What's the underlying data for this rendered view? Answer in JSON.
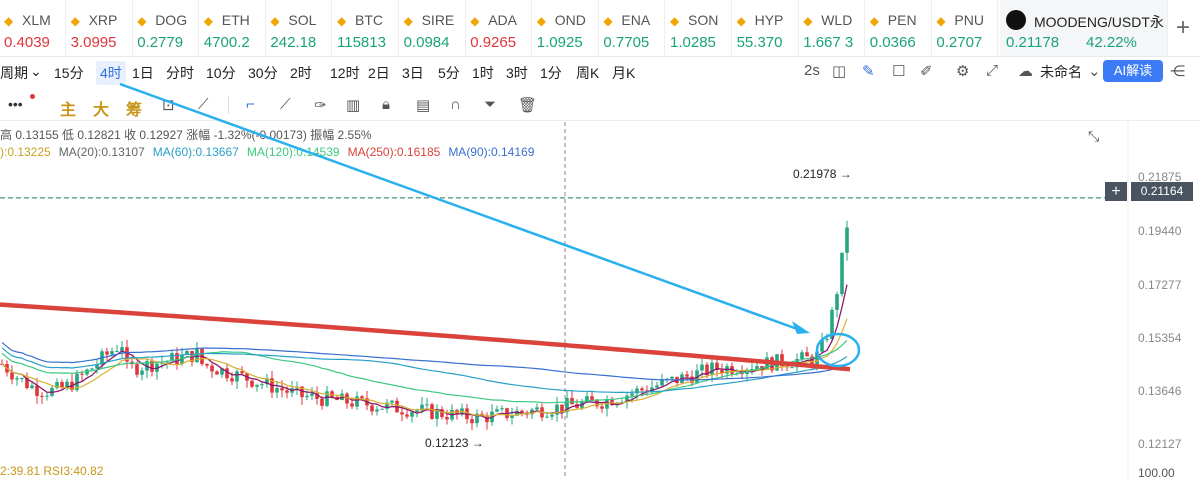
{
  "tabs": [
    {
      "sym": "XLM",
      "price": "0.4039",
      "dir": "dn"
    },
    {
      "sym": "XRP",
      "price": "3.0995",
      "dir": "dn"
    },
    {
      "sym": "DOG",
      "price": "0.2779",
      "dir": "up"
    },
    {
      "sym": "ETH",
      "price": "4700.2",
      "dir": "up"
    },
    {
      "sym": "SOL",
      "price": "242.18",
      "dir": "up"
    },
    {
      "sym": "BTC",
      "price": "115813",
      "dir": "up"
    },
    {
      "sym": "SIRE",
      "price": "0.0984",
      "dir": "up"
    },
    {
      "sym": "ADA",
      "price": "0.9265",
      "dir": "dn"
    },
    {
      "sym": "OND",
      "price": "1.0925",
      "dir": "up"
    },
    {
      "sym": "ENA",
      "price": "0.7705",
      "dir": "up"
    },
    {
      "sym": "SON",
      "price": "1.0285",
      "dir": "up"
    },
    {
      "sym": "HYP",
      "price": "55.370",
      "dir": "up"
    },
    {
      "sym": "WLD",
      "price": "1.667 3",
      "dir": "up"
    },
    {
      "sym": "PEN",
      "price": "0.0366",
      "dir": "up"
    },
    {
      "sym": "PNU",
      "price": "0.2707",
      "dir": "up"
    }
  ],
  "active_tab": {
    "sym": "MOODENG/USDT永",
    "price": "0.21178",
    "change": "42.22%"
  },
  "timeframes": [
    "周期",
    "15分",
    "4时",
    "1日",
    "分时",
    "10分",
    "30分",
    "2时",
    "12时",
    "2日",
    "3日",
    "5分",
    "1时",
    "3时",
    "1分",
    "周K",
    "月K"
  ],
  "toolbar_right": {
    "interval": "2s",
    "layout_name": "未命名",
    "ai_label": "AI解读"
  },
  "draw_tools": {
    "more": "•••",
    "indicators": [
      "主",
      "大",
      "筹"
    ]
  },
  "ohlc_info": "高 0.13155  低 0.12821  收 0.12927  涨幅 -1.32%(-0.00173)  振幅 2.55%",
  "ma_info": [
    {
      "text": "):0.13225",
      "color": "#c8a020"
    },
    {
      "text": "MA(20):0.13107",
      "color": "#666666"
    },
    {
      "text": "MA(60):0.13667",
      "color": "#2aa0c8"
    },
    {
      "text": "MA(120):0.14539",
      "color": "#3cc880"
    },
    {
      "text": "MA(250):0.16185",
      "color": "#d9433b"
    },
    {
      "text": "MA(90):0.14169",
      "color": "#3a6fd0"
    }
  ],
  "price_axis": [
    "0.21875",
    "0.19440",
    "0.17277",
    "0.15354",
    "0.13646",
    "0.12127",
    "100.00"
  ],
  "current_price": "0.21164",
  "high_annot": "0.21978 →",
  "low_annot": "0.12123 →",
  "rsi_info": "2:39.81  RSI3:40.82"
}
